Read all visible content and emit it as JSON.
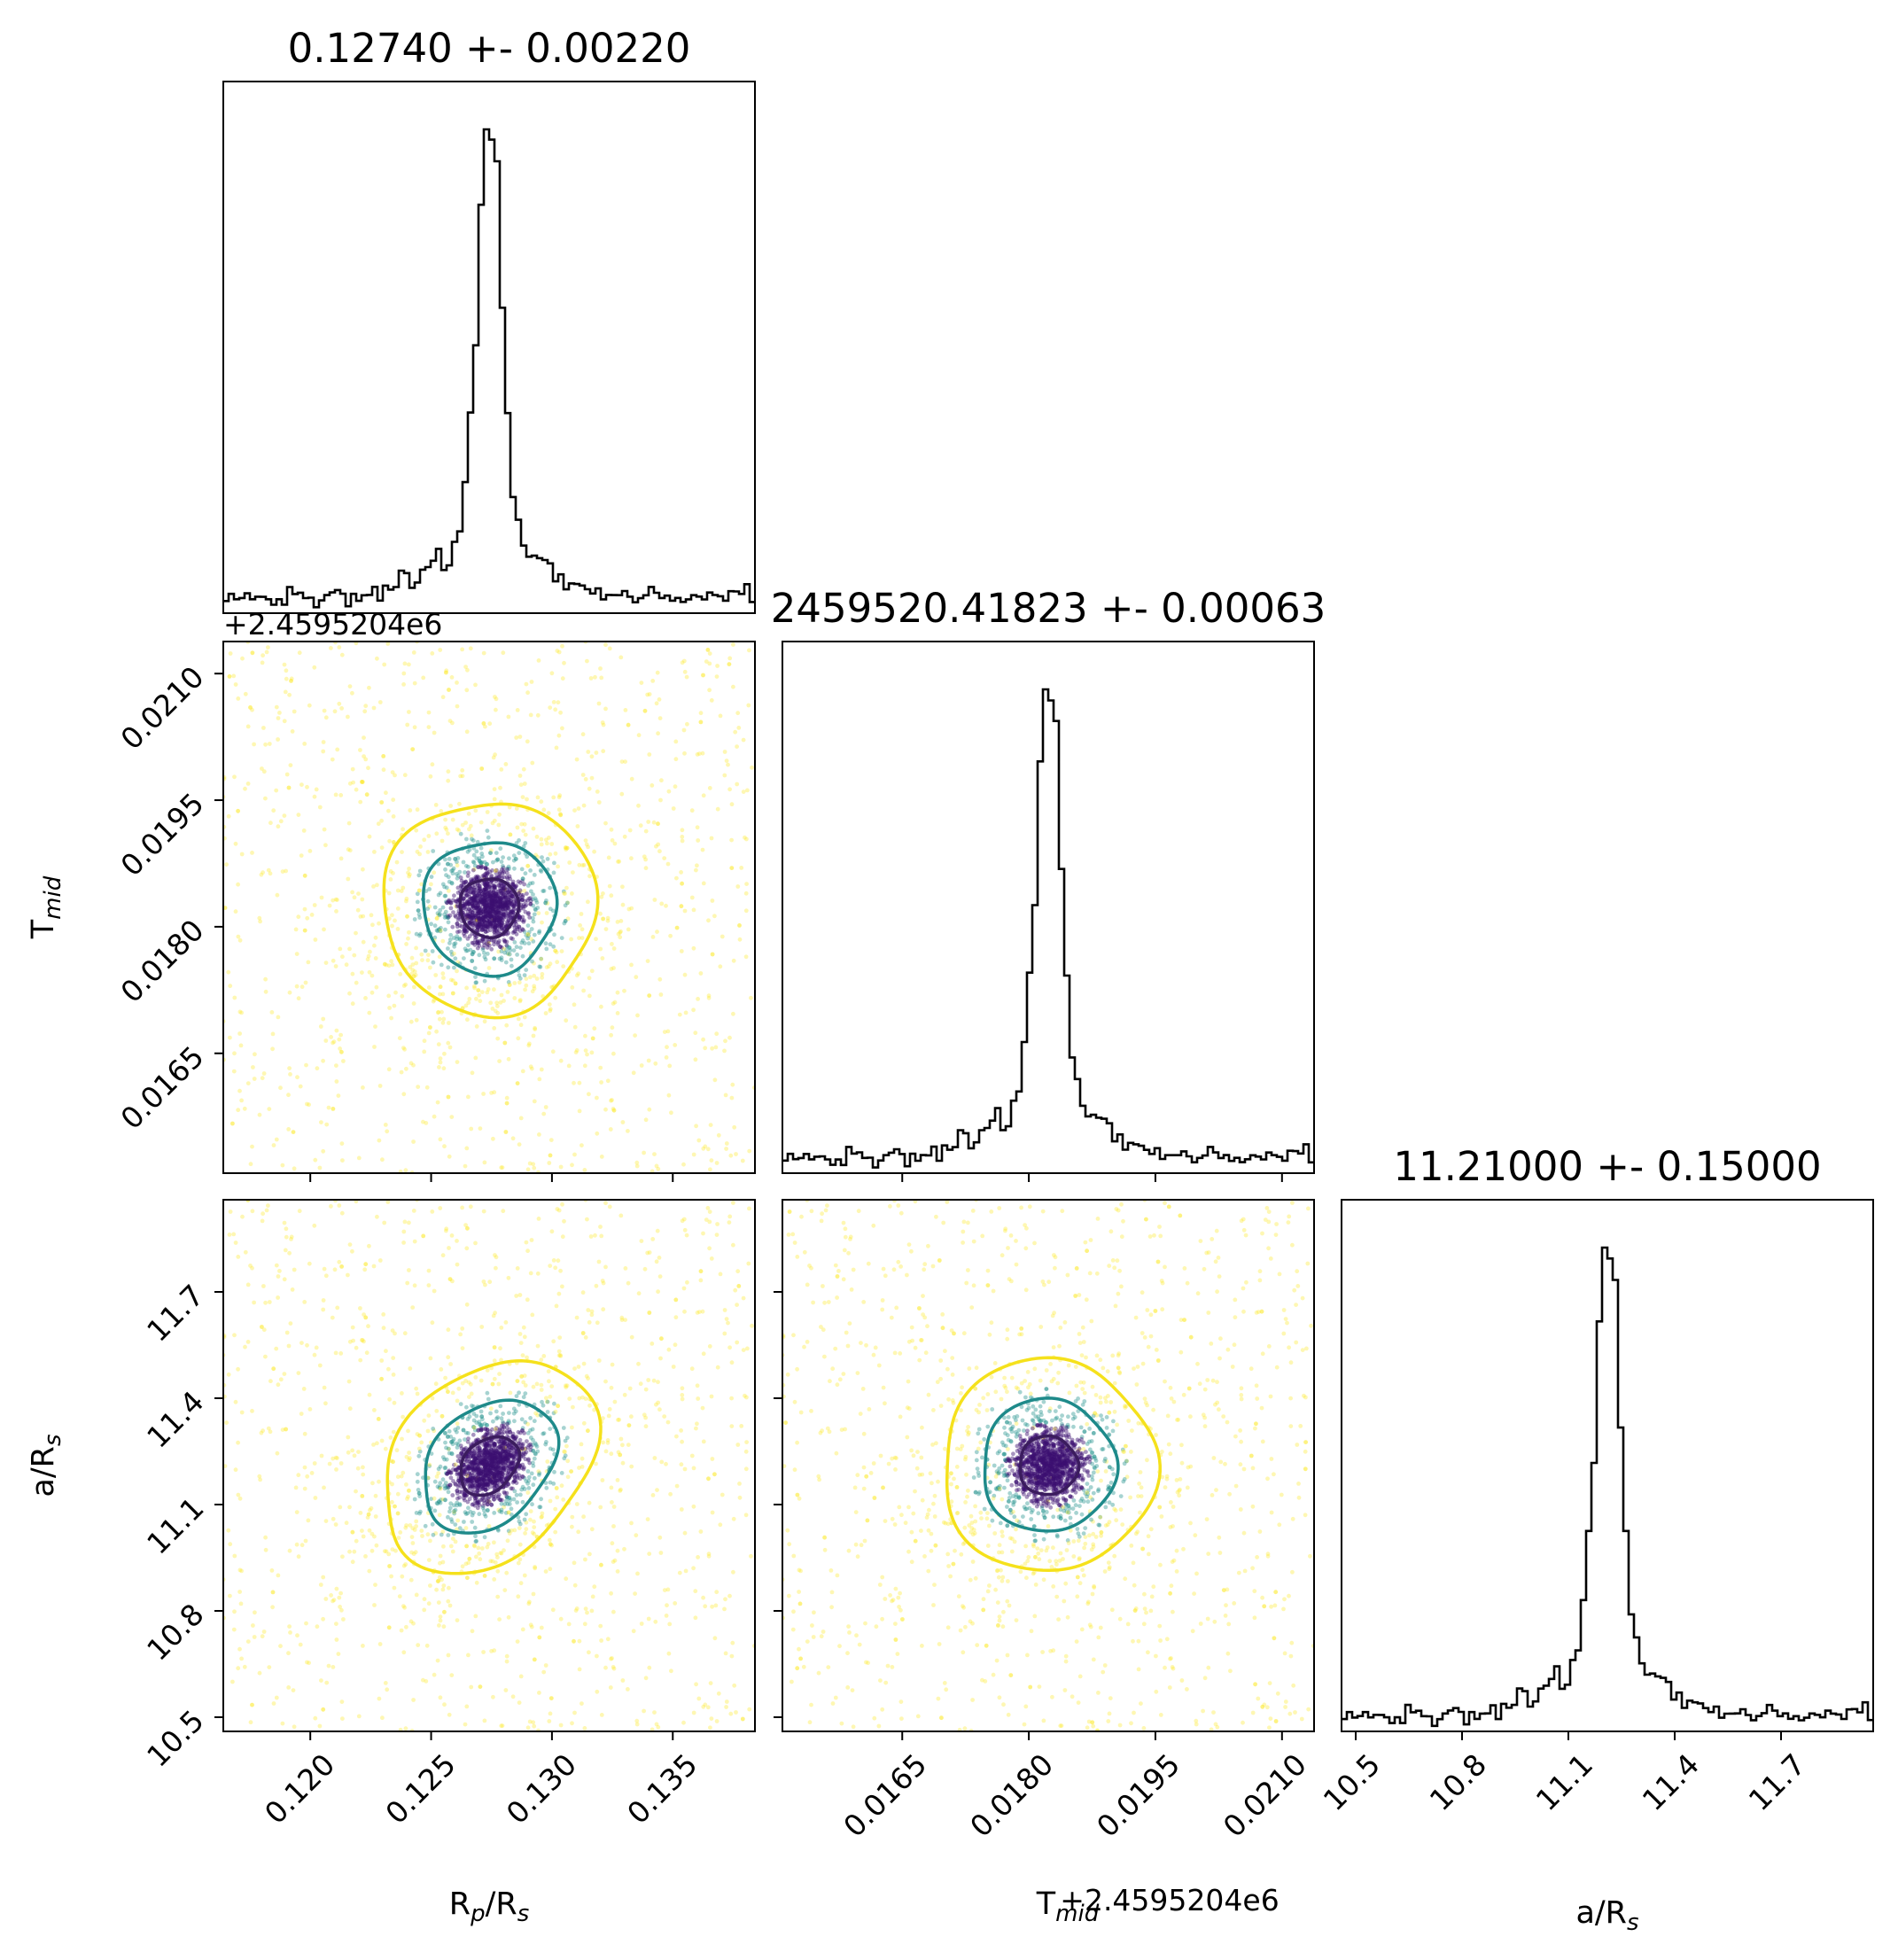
{
  "chart_data": {
    "type": "corner",
    "params": [
      {
        "name": "Rp/Rs",
        "label_main": "R",
        "label_sub1": "p",
        "label_mid": "/R",
        "label_sub2": "s",
        "title": "0.12740 +- 0.00220",
        "mean": 0.1274,
        "sigma": 0.0022,
        "range": [
          0.1164,
          0.1384
        ],
        "ticks": [
          "0.120",
          "0.125",
          "0.130",
          "0.135"
        ]
      },
      {
        "name": "Tmid",
        "label_main": "T",
        "label_sub1": "mid",
        "title": "2459520.41823 +- 0.00063",
        "offset_text": "+2.4595204e6",
        "mean": 0.01823,
        "sigma": 0.00063,
        "range": [
          0.01508,
          0.02138
        ],
        "ticks": [
          "0.0165",
          "0.0180",
          "0.0195",
          "0.0210"
        ]
      },
      {
        "name": "a/Rs",
        "label_main": "a/R",
        "label_sub1": "s",
        "title": "11.21000 +- 0.15000",
        "mean": 11.21,
        "sigma": 0.15,
        "range": [
          10.46,
          11.96
        ],
        "ticks": [
          "10.5",
          "10.8",
          "11.1",
          "11.4",
          "11.7"
        ]
      }
    ],
    "correlation": {
      "Rp/Rs_a/Rs": 0.3,
      "Rp/Rs_Tmid": 0.0,
      "Tmid_a/Rs": 0.0
    },
    "histogram": {
      "bins": 100,
      "shape": "sharp core on broad flat background"
    },
    "contour_levels": [
      "inner",
      "middle",
      "outer"
    ],
    "colors": {
      "hist": "#000000",
      "inner": "#3b1c5e",
      "middle": "#1e8a8a",
      "outer": "#f5e11c",
      "points_inner": "#3b0f70",
      "points_mid": "#21918c",
      "points_outer": "#fde725"
    }
  }
}
